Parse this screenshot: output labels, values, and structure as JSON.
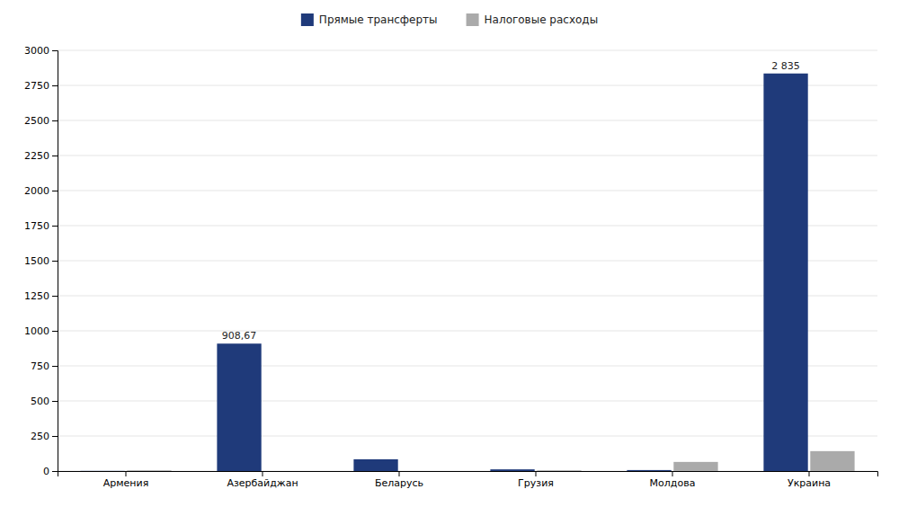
{
  "chart_data": {
    "type": "bar",
    "categories": [
      "Армения",
      "Азербайджан",
      "Беларусь",
      "Грузия",
      "Молдова",
      "Украина"
    ],
    "series": [
      {
        "name": "Прямые трансферты",
        "color": "#1F3A7A",
        "values": [
          1.0,
          908.67,
          84.0,
          12.0,
          7.0,
          2835.0
        ],
        "value_labels": [
          null,
          "908,67",
          null,
          null,
          null,
          "2 835"
        ]
      },
      {
        "name": "Налоговые расходы",
        "color": "#AAAAAA",
        "values": [
          5.0,
          0.0,
          0.0,
          5.0,
          65.0,
          142.0
        ]
      }
    ],
    "ylim": [
      0,
      3000
    ],
    "yticks": [
      0,
      250,
      500,
      750,
      1000,
      1250,
      1500,
      1750,
      2000,
      2250,
      2500,
      2750,
      3000
    ],
    "grid": true,
    "legend": "top"
  }
}
